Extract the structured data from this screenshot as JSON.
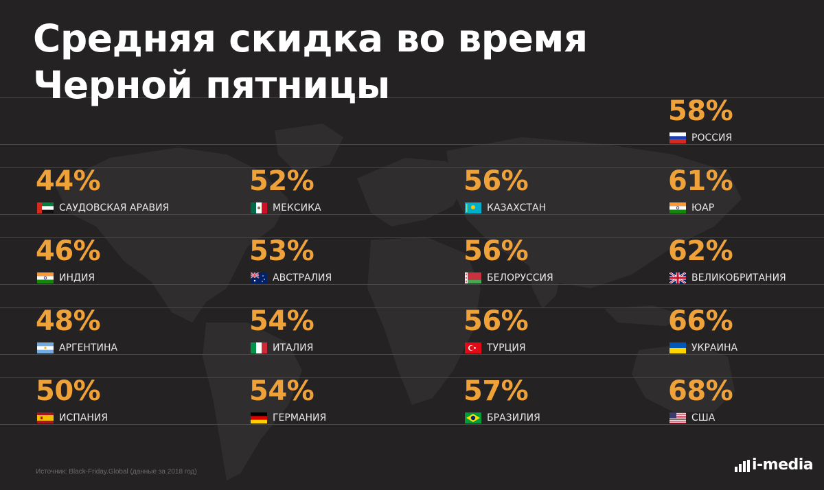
{
  "title_line1": "Средняя скидка во время",
  "title_line2": "Черной пятницы",
  "source": "Источник: Black-Friday.Global (данные за 2018 год)",
  "brand": "i-media",
  "colors": {
    "background": "#242222",
    "value": "#f0a23a",
    "text": "#ffffff",
    "map": "#2f2d2d"
  },
  "chart_data": {
    "type": "table",
    "value_unit": "%",
    "series": [
      {
        "name": "РОССИЯ",
        "value": 58,
        "flag": "flag-ru"
      },
      {
        "name": "САУДОВСКАЯ АРАВИЯ",
        "value": 44,
        "flag": "flag-ae"
      },
      {
        "name": "МЕКСИКА",
        "value": 52,
        "flag": "flag-mx"
      },
      {
        "name": "КАЗАХСТАН",
        "value": 56,
        "flag": "flag-kz"
      },
      {
        "name": "ЮАР",
        "value": 61,
        "flag": "flag-in"
      },
      {
        "name": "ИНДИЯ",
        "value": 46,
        "flag": "flag-in"
      },
      {
        "name": "АВСТРАЛИЯ",
        "value": 53,
        "flag": "flag-au"
      },
      {
        "name": "БЕЛОРУССИЯ",
        "value": 56,
        "flag": "flag-by"
      },
      {
        "name": "ВЕЛИКОБРИТАНИЯ",
        "value": 62,
        "flag": "flag-gb"
      },
      {
        "name": "АРГЕНТИНА",
        "value": 48,
        "flag": "flag-ar"
      },
      {
        "name": "ИТАЛИЯ",
        "value": 54,
        "flag": "flag-it"
      },
      {
        "name": "ТУРЦИЯ",
        "value": 56,
        "flag": "flag-tr"
      },
      {
        "name": "УКРАИНА",
        "value": 66,
        "flag": "flag-ua"
      },
      {
        "name": "ИСПАНИЯ",
        "value": 50,
        "flag": "flag-es"
      },
      {
        "name": "ГЕРМАНИЯ",
        "value": 54,
        "flag": "flag-de"
      },
      {
        "name": "БРАЗИЛИЯ",
        "value": 57,
        "flag": "flag-br"
      },
      {
        "name": "США",
        "value": 68,
        "flag": "flag-us"
      }
    ]
  }
}
